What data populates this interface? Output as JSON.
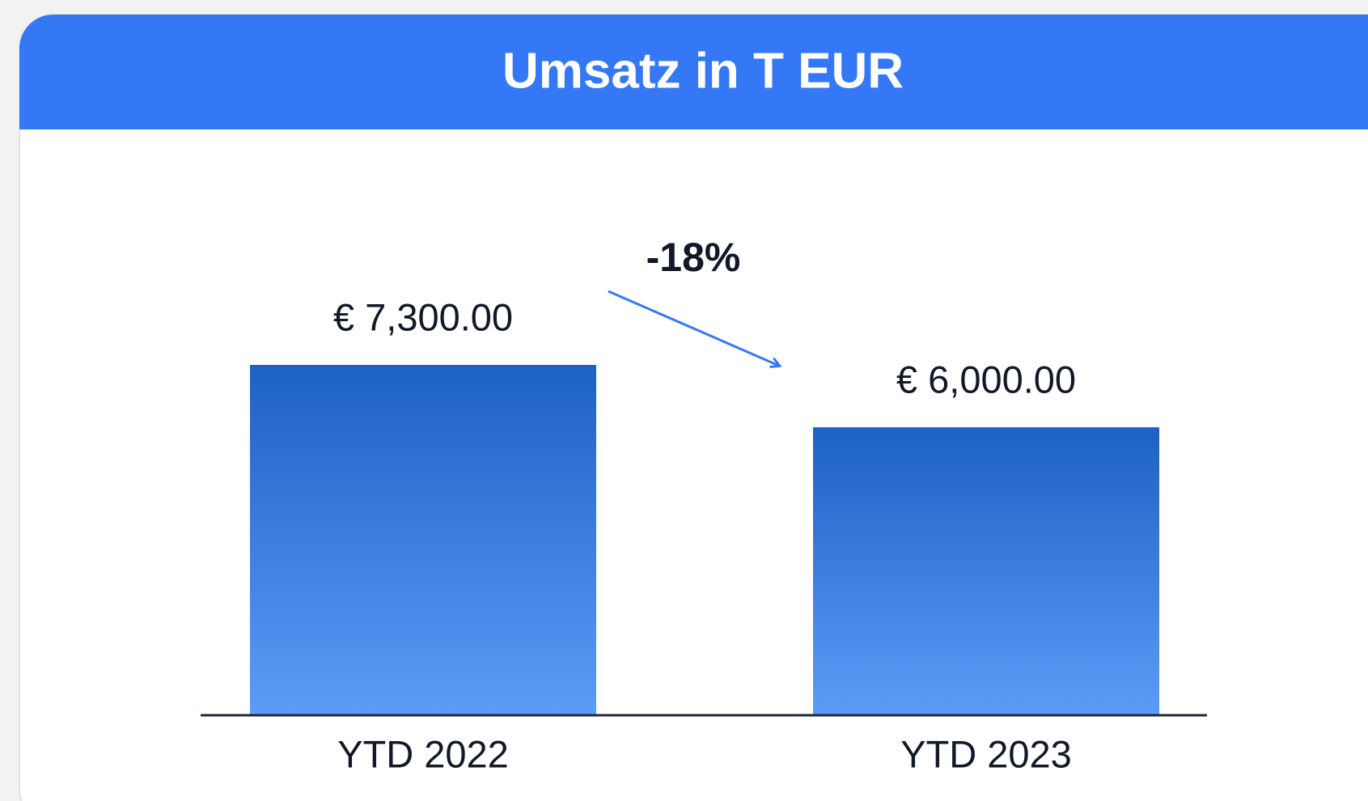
{
  "chart_data": {
    "type": "bar",
    "title": "Umsatz in T EUR",
    "categories": [
      "YTD 2022",
      "YTD 2023"
    ],
    "values": [
      7300,
      6000
    ],
    "value_labels": [
      "€  7,300.00",
      "€  6,000.00"
    ],
    "annotation": "-18%",
    "color": "#3478f6"
  }
}
